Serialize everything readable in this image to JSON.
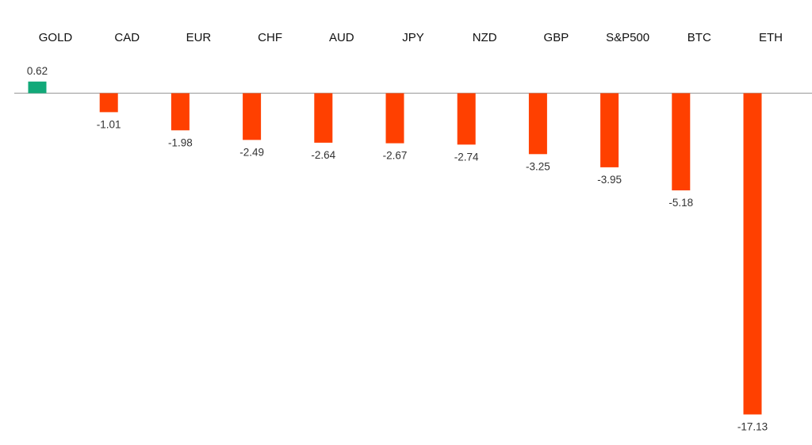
{
  "chart_data": {
    "type": "bar",
    "title": "",
    "xlabel": "",
    "ylabel": "",
    "categories": [
      "GOLD",
      "CAD",
      "EUR",
      "CHF",
      "AUD",
      "JPY",
      "NZD",
      "GBP",
      "S&P500",
      "BTC",
      "ETH"
    ],
    "values": [
      0.62,
      -1.01,
      -1.98,
      -2.49,
      -2.64,
      -2.67,
      -2.74,
      -3.25,
      -3.95,
      -5.18,
      -17.13
    ],
    "value_labels": [
      "0.62",
      "-1.01",
      "-1.98",
      "-2.49",
      "-2.64",
      "-2.67",
      "-2.74",
      "-3.25",
      "-3.95",
      "-5.18",
      "-17.13"
    ],
    "ylim": [
      -17.13,
      0.62
    ],
    "grid": false,
    "legend": "none",
    "category_labels_position": "top",
    "colors": {
      "positive": "#12a979",
      "negative": "#ff4000",
      "axis": "#a6a6a6"
    }
  }
}
